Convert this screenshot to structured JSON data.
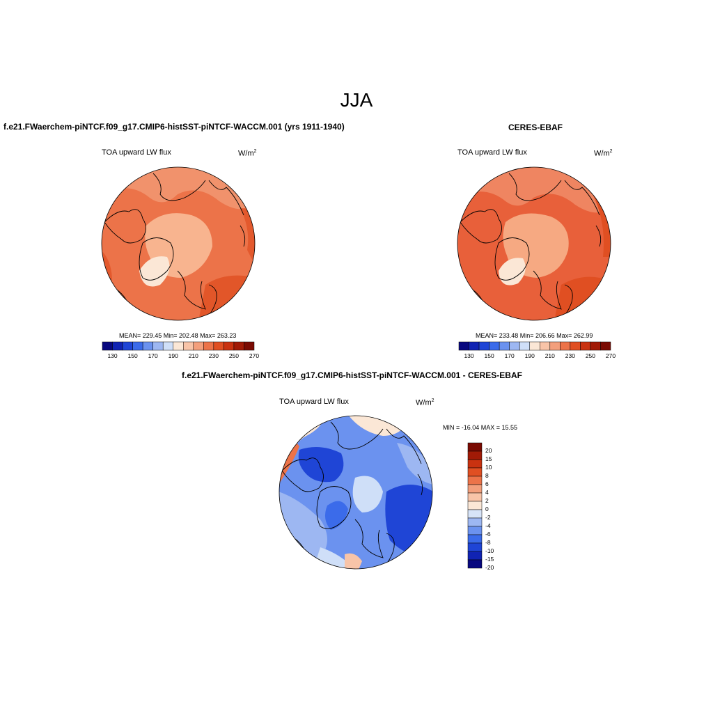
{
  "page": {
    "title": "JJA"
  },
  "panels": [
    {
      "case_title": "f.e21.FWaerchem-piNTCF.f09_g17.CMIP6-histSST-piNTCF-WACCM.001 (yrs 1911-1940)",
      "variable": "TOA upward LW flux",
      "units": "W/m",
      "units_sup": "2",
      "stats": "MEAN= 229.45   Min= 202.48   Max= 263.23"
    },
    {
      "case_title": "CERES-EBAF",
      "variable": "TOA upward LW flux",
      "units": "W/m",
      "units_sup": "2",
      "stats": "MEAN= 233.48   Min= 206.66   Max= 262.99"
    },
    {
      "case_title": "f.e21.FWaerchem-piNTCF.f09_g17.CMIP6-histSST-piNTCF-WACCM.001 - CERES-EBAF",
      "variable": "TOA upward LW flux",
      "units": "W/m",
      "units_sup": "2",
      "stats": "MIN = -16.04 MAX =  15.55"
    }
  ],
  "colorbar_abs": {
    "colors": [
      "#08087f",
      "#1023b3",
      "#1f45d6",
      "#3b6bea",
      "#6b92ef",
      "#9db7f2",
      "#cfdff8",
      "#fbe7d6",
      "#f8c4a8",
      "#f39f7c",
      "#ec7349",
      "#e04f22",
      "#c93210",
      "#a11a06",
      "#7a0a02"
    ],
    "ticks": [
      "130",
      "150",
      "170",
      "190",
      "210",
      "230",
      "250",
      "270"
    ]
  },
  "colorbar_diff": {
    "colors": [
      "#7a0a02",
      "#a11a06",
      "#c93210",
      "#e04f22",
      "#ec7349",
      "#f39f7c",
      "#f8c4a8",
      "#fbe7d6",
      "#d7e4f8",
      "#9db7f2",
      "#6b92ef",
      "#3b6bea",
      "#1f45d6",
      "#1023b3",
      "#08087f"
    ],
    "ticks": [
      "20",
      "15",
      "10",
      "8",
      "6",
      "4",
      "2",
      "0",
      "-2",
      "-4",
      "-6",
      "-8",
      "-10",
      "-15",
      "-20"
    ]
  }
}
